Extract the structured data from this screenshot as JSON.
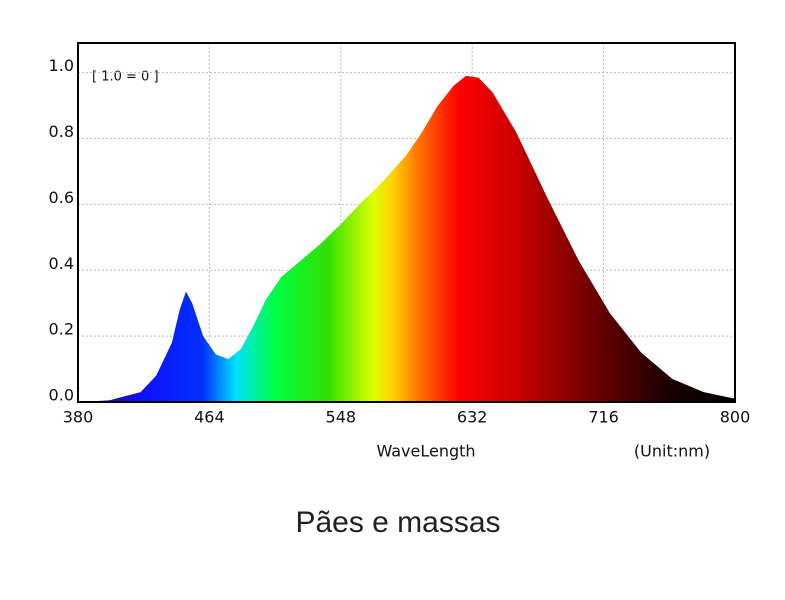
{
  "chart_data": {
    "type": "area",
    "annotation": "[ 1.0 = 0 ]",
    "x_label": "WaveLength",
    "unit_label": "(Unit:nm)",
    "caption": "Pães e massas",
    "x": [
      380,
      400,
      420,
      430,
      440,
      445,
      449,
      453,
      460,
      468,
      476,
      484,
      492,
      500,
      510,
      520,
      535,
      548,
      560,
      575,
      590,
      600,
      610,
      620,
      628,
      636,
      645,
      660,
      680,
      700,
      720,
      740,
      760,
      780,
      800
    ],
    "values": [
      0,
      0.005,
      0.03,
      0.08,
      0.18,
      0.28,
      0.335,
      0.3,
      0.2,
      0.145,
      0.13,
      0.16,
      0.23,
      0.31,
      0.38,
      0.42,
      0.48,
      0.54,
      0.6,
      0.67,
      0.75,
      0.82,
      0.9,
      0.96,
      0.99,
      0.985,
      0.94,
      0.82,
      0.62,
      0.43,
      0.27,
      0.15,
      0.07,
      0.03,
      0.01
    ],
    "xlim": [
      380,
      800
    ],
    "ylim": [
      0,
      1.09
    ],
    "xticks": [
      380,
      464,
      548,
      632,
      716,
      800
    ],
    "yticks": [
      {
        "value": 0,
        "label": "0.0"
      },
      0.2,
      0.4,
      0.6,
      0.8,
      {
        "value": 1,
        "label": "1.0"
      }
    ],
    "grid": true
  }
}
